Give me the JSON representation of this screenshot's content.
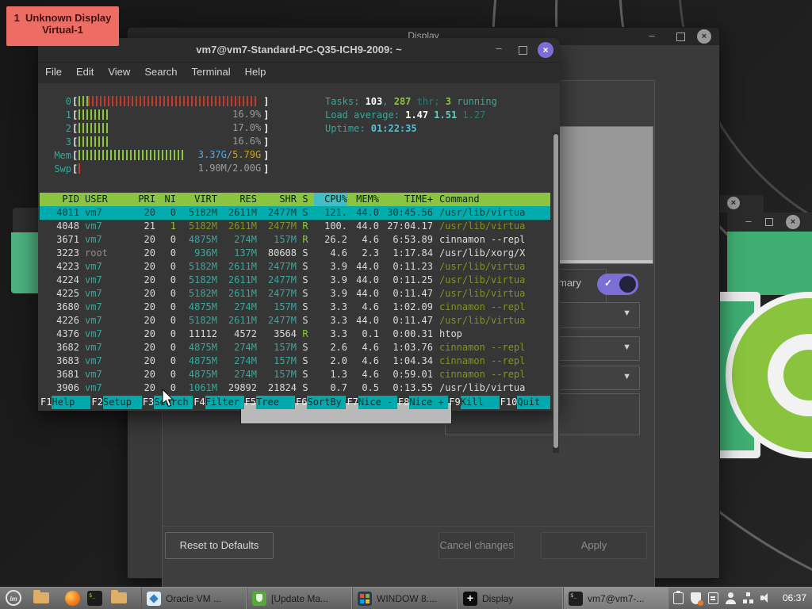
{
  "notification": {
    "number": "1",
    "title": "Unknown Display",
    "subtitle": "Virtual-1"
  },
  "display": {
    "title": "Display",
    "primary_label": "mary",
    "reset_button": "Reset to Defaults",
    "cancel_button": "Cancel changes",
    "apply_button": "Apply"
  },
  "terminal": {
    "title": "vm7@vm7-Standard-PC-Q35-ICH9-2009: ~",
    "menu": [
      "File",
      "Edit",
      "View",
      "Search",
      "Terminal",
      "Help"
    ],
    "htop": {
      "cpu_meters": [
        {
          "label": "0",
          "fill_pct": 97,
          "color": "red",
          "value": ""
        },
        {
          "label": "1",
          "fill_pct": 16,
          "color": "green",
          "value": "16.9%"
        },
        {
          "label": "2",
          "fill_pct": 17,
          "color": "green",
          "value": "17.0%"
        },
        {
          "label": "3",
          "fill_pct": 16,
          "color": "green",
          "value": "16.6%"
        }
      ],
      "mem_meter": {
        "label": "Mem",
        "fill_pct": 57,
        "used": "3.37G",
        "total": "5.79G"
      },
      "swp_meter": {
        "label": "Swp",
        "fill_pct": 2,
        "value": "1.90M/2.00G"
      },
      "info_lines": [
        [
          {
            "t": "Tasks: ",
            "c": "#38a79b"
          },
          {
            "t": "103",
            "c": "#ffffff",
            "b": true
          },
          {
            "t": ", ",
            "c": "#38a79b"
          },
          {
            "t": "287",
            "c": "#8cc63e",
            "b": true
          },
          {
            "t": " thr; ",
            "c": "#2a7d72"
          },
          {
            "t": "3",
            "c": "#8cc63e",
            "b": true
          },
          {
            "t": " running",
            "c": "#38a79b"
          }
        ],
        [
          {
            "t": "Load average: ",
            "c": "#38a79b"
          },
          {
            "t": "1.47 ",
            "c": "#ffffff",
            "b": true
          },
          {
            "t": "1.51 ",
            "c": "#5fd0c2",
            "b": true
          },
          {
            "t": "1.27",
            "c": "#2a7d72"
          }
        ],
        [
          {
            "t": "Uptime: ",
            "c": "#38a79b"
          },
          {
            "t": "01:22:35",
            "c": "#4fc3dd",
            "b": true
          }
        ]
      ],
      "columns": [
        "PID",
        "USER",
        "PRI",
        "NI",
        "VIRT",
        "RES",
        "SHR",
        "S",
        "CPU%",
        "MEM%",
        "TIME+",
        "Command"
      ],
      "sort_column": "CPU%",
      "rows": [
        {
          "pid": "4011",
          "user": "vm7",
          "pri": "20",
          "ni": "0",
          "virt": "5182M",
          "res": "2611M",
          "shr": "2477M",
          "s": "S",
          "cpu": "121.",
          "mem": "44.0",
          "time": "30:45.56",
          "cmd": "/usr/lib/virtua",
          "selected": true
        },
        {
          "pid": "4048",
          "user": "vm7",
          "pri": "21",
          "ni": "1",
          "virt": "5182M",
          "res": "2611M",
          "shr": "2477M",
          "s": "R",
          "cpu": "100.",
          "mem": "44.0",
          "time": "27:04.17",
          "cmd": "/usr/lib/virtua",
          "style": {
            "ni": "green",
            "n": "olive",
            "s": "green"
          }
        },
        {
          "pid": "3671",
          "user": "vm7",
          "pri": "20",
          "ni": "0",
          "virt": "4875M",
          "res": "274M",
          "shr": "157M",
          "s": "R",
          "cpu": "26.2",
          "mem": "4.6",
          "time": "6:53.89",
          "cmd": "cinnamon --repl",
          "style": {
            "s": "green",
            "cmd": "white"
          }
        },
        {
          "pid": "3223",
          "user": "root",
          "pri": "20",
          "ni": "0",
          "virt": "936M",
          "res": "137M",
          "shr": "80608",
          "s": "S",
          "cpu": "4.6",
          "mem": "2.3",
          "time": "1:17.84",
          "cmd": "/usr/lib/xorg/X",
          "style": {
            "u": "gray",
            "shr": "white",
            "cmd": "white"
          }
        },
        {
          "pid": "4223",
          "user": "vm7",
          "pri": "20",
          "ni": "0",
          "virt": "5182M",
          "res": "2611M",
          "shr": "2477M",
          "s": "S",
          "cpu": "3.9",
          "mem": "44.0",
          "time": "0:11.23",
          "cmd": "/usr/lib/virtua"
        },
        {
          "pid": "4224",
          "user": "vm7",
          "pri": "20",
          "ni": "0",
          "virt": "5182M",
          "res": "2611M",
          "shr": "2477M",
          "s": "S",
          "cpu": "3.9",
          "mem": "44.0",
          "time": "0:11.25",
          "cmd": "/usr/lib/virtua"
        },
        {
          "pid": "4225",
          "user": "vm7",
          "pri": "20",
          "ni": "0",
          "virt": "5182M",
          "res": "2611M",
          "shr": "2477M",
          "s": "S",
          "cpu": "3.9",
          "mem": "44.0",
          "time": "0:11.47",
          "cmd": "/usr/lib/virtua"
        },
        {
          "pid": "3680",
          "user": "vm7",
          "pri": "20",
          "ni": "0",
          "virt": "4875M",
          "res": "274M",
          "shr": "157M",
          "s": "S",
          "cpu": "3.3",
          "mem": "4.6",
          "time": "1:02.09",
          "cmd": "cinnamon --repl"
        },
        {
          "pid": "4226",
          "user": "vm7",
          "pri": "20",
          "ni": "0",
          "virt": "5182M",
          "res": "2611M",
          "shr": "2477M",
          "s": "S",
          "cpu": "3.3",
          "mem": "44.0",
          "time": "0:11.47",
          "cmd": "/usr/lib/virtua"
        },
        {
          "pid": "4376",
          "user": "vm7",
          "pri": "20",
          "ni": "0",
          "virt": "11112",
          "res": "4572",
          "shr": "3564",
          "s": "R",
          "cpu": "3.3",
          "mem": "0.1",
          "time": "0:00.31",
          "cmd": "htop",
          "style": {
            "n": "white",
            "s": "green",
            "cmd": "white"
          }
        },
        {
          "pid": "3682",
          "user": "vm7",
          "pri": "20",
          "ni": "0",
          "virt": "4875M",
          "res": "274M",
          "shr": "157M",
          "s": "S",
          "cpu": "2.6",
          "mem": "4.6",
          "time": "1:03.76",
          "cmd": "cinnamon --repl"
        },
        {
          "pid": "3683",
          "user": "vm7",
          "pri": "20",
          "ni": "0",
          "virt": "4875M",
          "res": "274M",
          "shr": "157M",
          "s": "S",
          "cpu": "2.0",
          "mem": "4.6",
          "time": "1:04.34",
          "cmd": "cinnamon --repl"
        },
        {
          "pid": "3681",
          "user": "vm7",
          "pri": "20",
          "ni": "0",
          "virt": "4875M",
          "res": "274M",
          "shr": "157M",
          "s": "S",
          "cpu": "1.3",
          "mem": "4.6",
          "time": "0:59.01",
          "cmd": "cinnamon --repl"
        },
        {
          "pid": "3906",
          "user": "vm7",
          "pri": "20",
          "ni": "0",
          "virt": "1061M",
          "res": "29892",
          "shr": "21824",
          "s": "S",
          "cpu": "0.7",
          "mem": "0.5",
          "time": "0:13.55",
          "cmd": "/usr/lib/virtua",
          "style": {
            "res": "white",
            "shr": "white",
            "cmd": "white"
          }
        }
      ],
      "fkeys": [
        {
          "key": "F1",
          "label": "Help"
        },
        {
          "key": "F2",
          "label": "Setup"
        },
        {
          "key": "F3",
          "label": "Search"
        },
        {
          "key": "F4",
          "label": "Filter"
        },
        {
          "key": "F5",
          "label": "Tree"
        },
        {
          "key": "F6",
          "label": "SortBy"
        },
        {
          "key": "F7",
          "label": "Nice -"
        },
        {
          "key": "F8",
          "label": "Nice +"
        },
        {
          "key": "F9",
          "label": "Kill"
        },
        {
          "key": "F10",
          "label": "Quit"
        }
      ]
    }
  },
  "taskbar": {
    "windows": [
      {
        "icon": "ic-vbox",
        "name": "virtualbox-icon",
        "label": "Oracle VM ..."
      },
      {
        "icon": "ic-upd",
        "name": "update-manager-icon",
        "label": "[Update Ma..."
      },
      {
        "icon": "ic-win8",
        "name": "windows8-icon",
        "label": "WINDOW 8...."
      },
      {
        "icon": "ic-move",
        "name": "display-move-icon",
        "label": "Display"
      },
      {
        "icon": "ic-term",
        "name": "terminal-icon",
        "label": "vm7@vm7-...",
        "active": true
      }
    ],
    "tray": [
      "clipboard-icon",
      "shield-icon",
      "notes-icon",
      "user-icon",
      "network-icon",
      "volume-icon"
    ],
    "clock": "06:37"
  },
  "colors": {
    "htop_teal": "#38a79b",
    "htop_olive": "#7f951f",
    "htop_green": "#8cc63e",
    "selection_cyan": "#00acac",
    "header_green": "#8ac440",
    "accent_purple": "#7b6fd6",
    "badge_red": "#ed6d64",
    "mint_green": "#8ac43e"
  }
}
